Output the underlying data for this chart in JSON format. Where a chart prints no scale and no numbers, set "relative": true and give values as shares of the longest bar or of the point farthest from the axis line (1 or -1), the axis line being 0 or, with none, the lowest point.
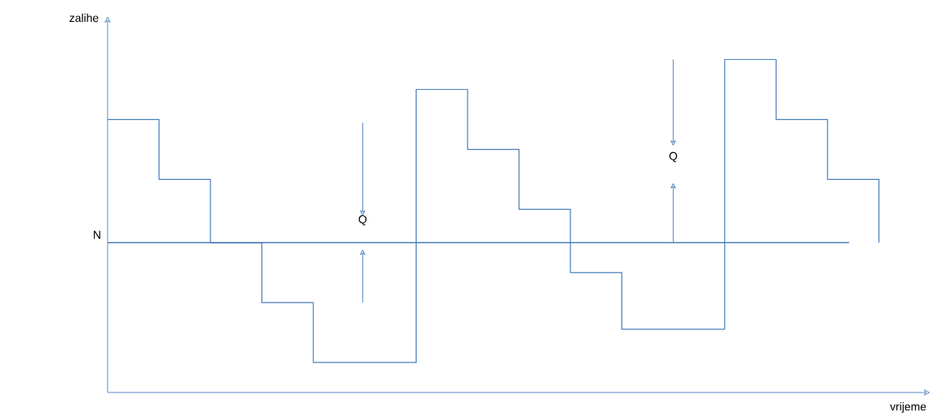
{
  "chart_data": {
    "type": "step",
    "relative": true,
    "xlabel": "vrijeme",
    "ylabel": "zalihe",
    "color": "#4a7ebb",
    "categories": [
      null,
      null,
      null,
      null,
      null,
      null,
      null,
      null,
      null,
      null,
      null,
      null,
      null,
      null,
      null,
      null
    ],
    "values": [
      0.82,
      0.64,
      0.45,
      0.27,
      0.09,
      0.09,
      0.91,
      0.73,
      0.55,
      0.36,
      0.19,
      0.19,
      1.0,
      0.82,
      0.64,
      0.45
    ],
    "ref_lines": [
      {
        "axis": "y",
        "value": 0.45,
        "label": "N"
      }
    ],
    "annotations": [
      "Q",
      "Q"
    ]
  }
}
